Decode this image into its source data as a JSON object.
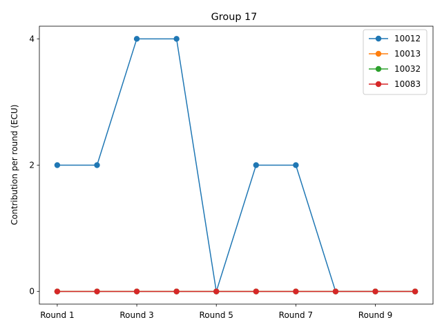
{
  "chart_data": {
    "type": "line",
    "title": "Group 17",
    "xlabel": "",
    "ylabel": "Contribution per round (ECU)",
    "categories": [
      "Round 1",
      "Round 2",
      "Round 3",
      "Round 4",
      "Round 5",
      "Round 6",
      "Round 7",
      "Round 8",
      "Round 9",
      "Round 10"
    ],
    "x_tick_labels": [
      "Round 1",
      "Round 3",
      "Round 5",
      "Round 7",
      "Round 9"
    ],
    "y_ticks": [
      0,
      2,
      4
    ],
    "ylim": [
      -0.2,
      4.2
    ],
    "grid": false,
    "legend_position": "top-right",
    "series": [
      {
        "name": "10012",
        "color": "#1f77b4",
        "values": [
          2,
          2,
          4,
          4,
          0,
          2,
          2,
          0,
          0,
          0
        ]
      },
      {
        "name": "10013",
        "color": "#ff7f0e",
        "values": [
          0,
          0,
          0,
          0,
          0,
          0,
          0,
          0,
          0,
          0
        ]
      },
      {
        "name": "10032",
        "color": "#2ca02c",
        "values": [
          0,
          0,
          0,
          0,
          0,
          0,
          0,
          0,
          0,
          0
        ]
      },
      {
        "name": "10083",
        "color": "#d62728",
        "values": [
          0,
          0,
          0,
          0,
          0,
          0,
          0,
          0,
          0,
          0
        ]
      }
    ]
  }
}
